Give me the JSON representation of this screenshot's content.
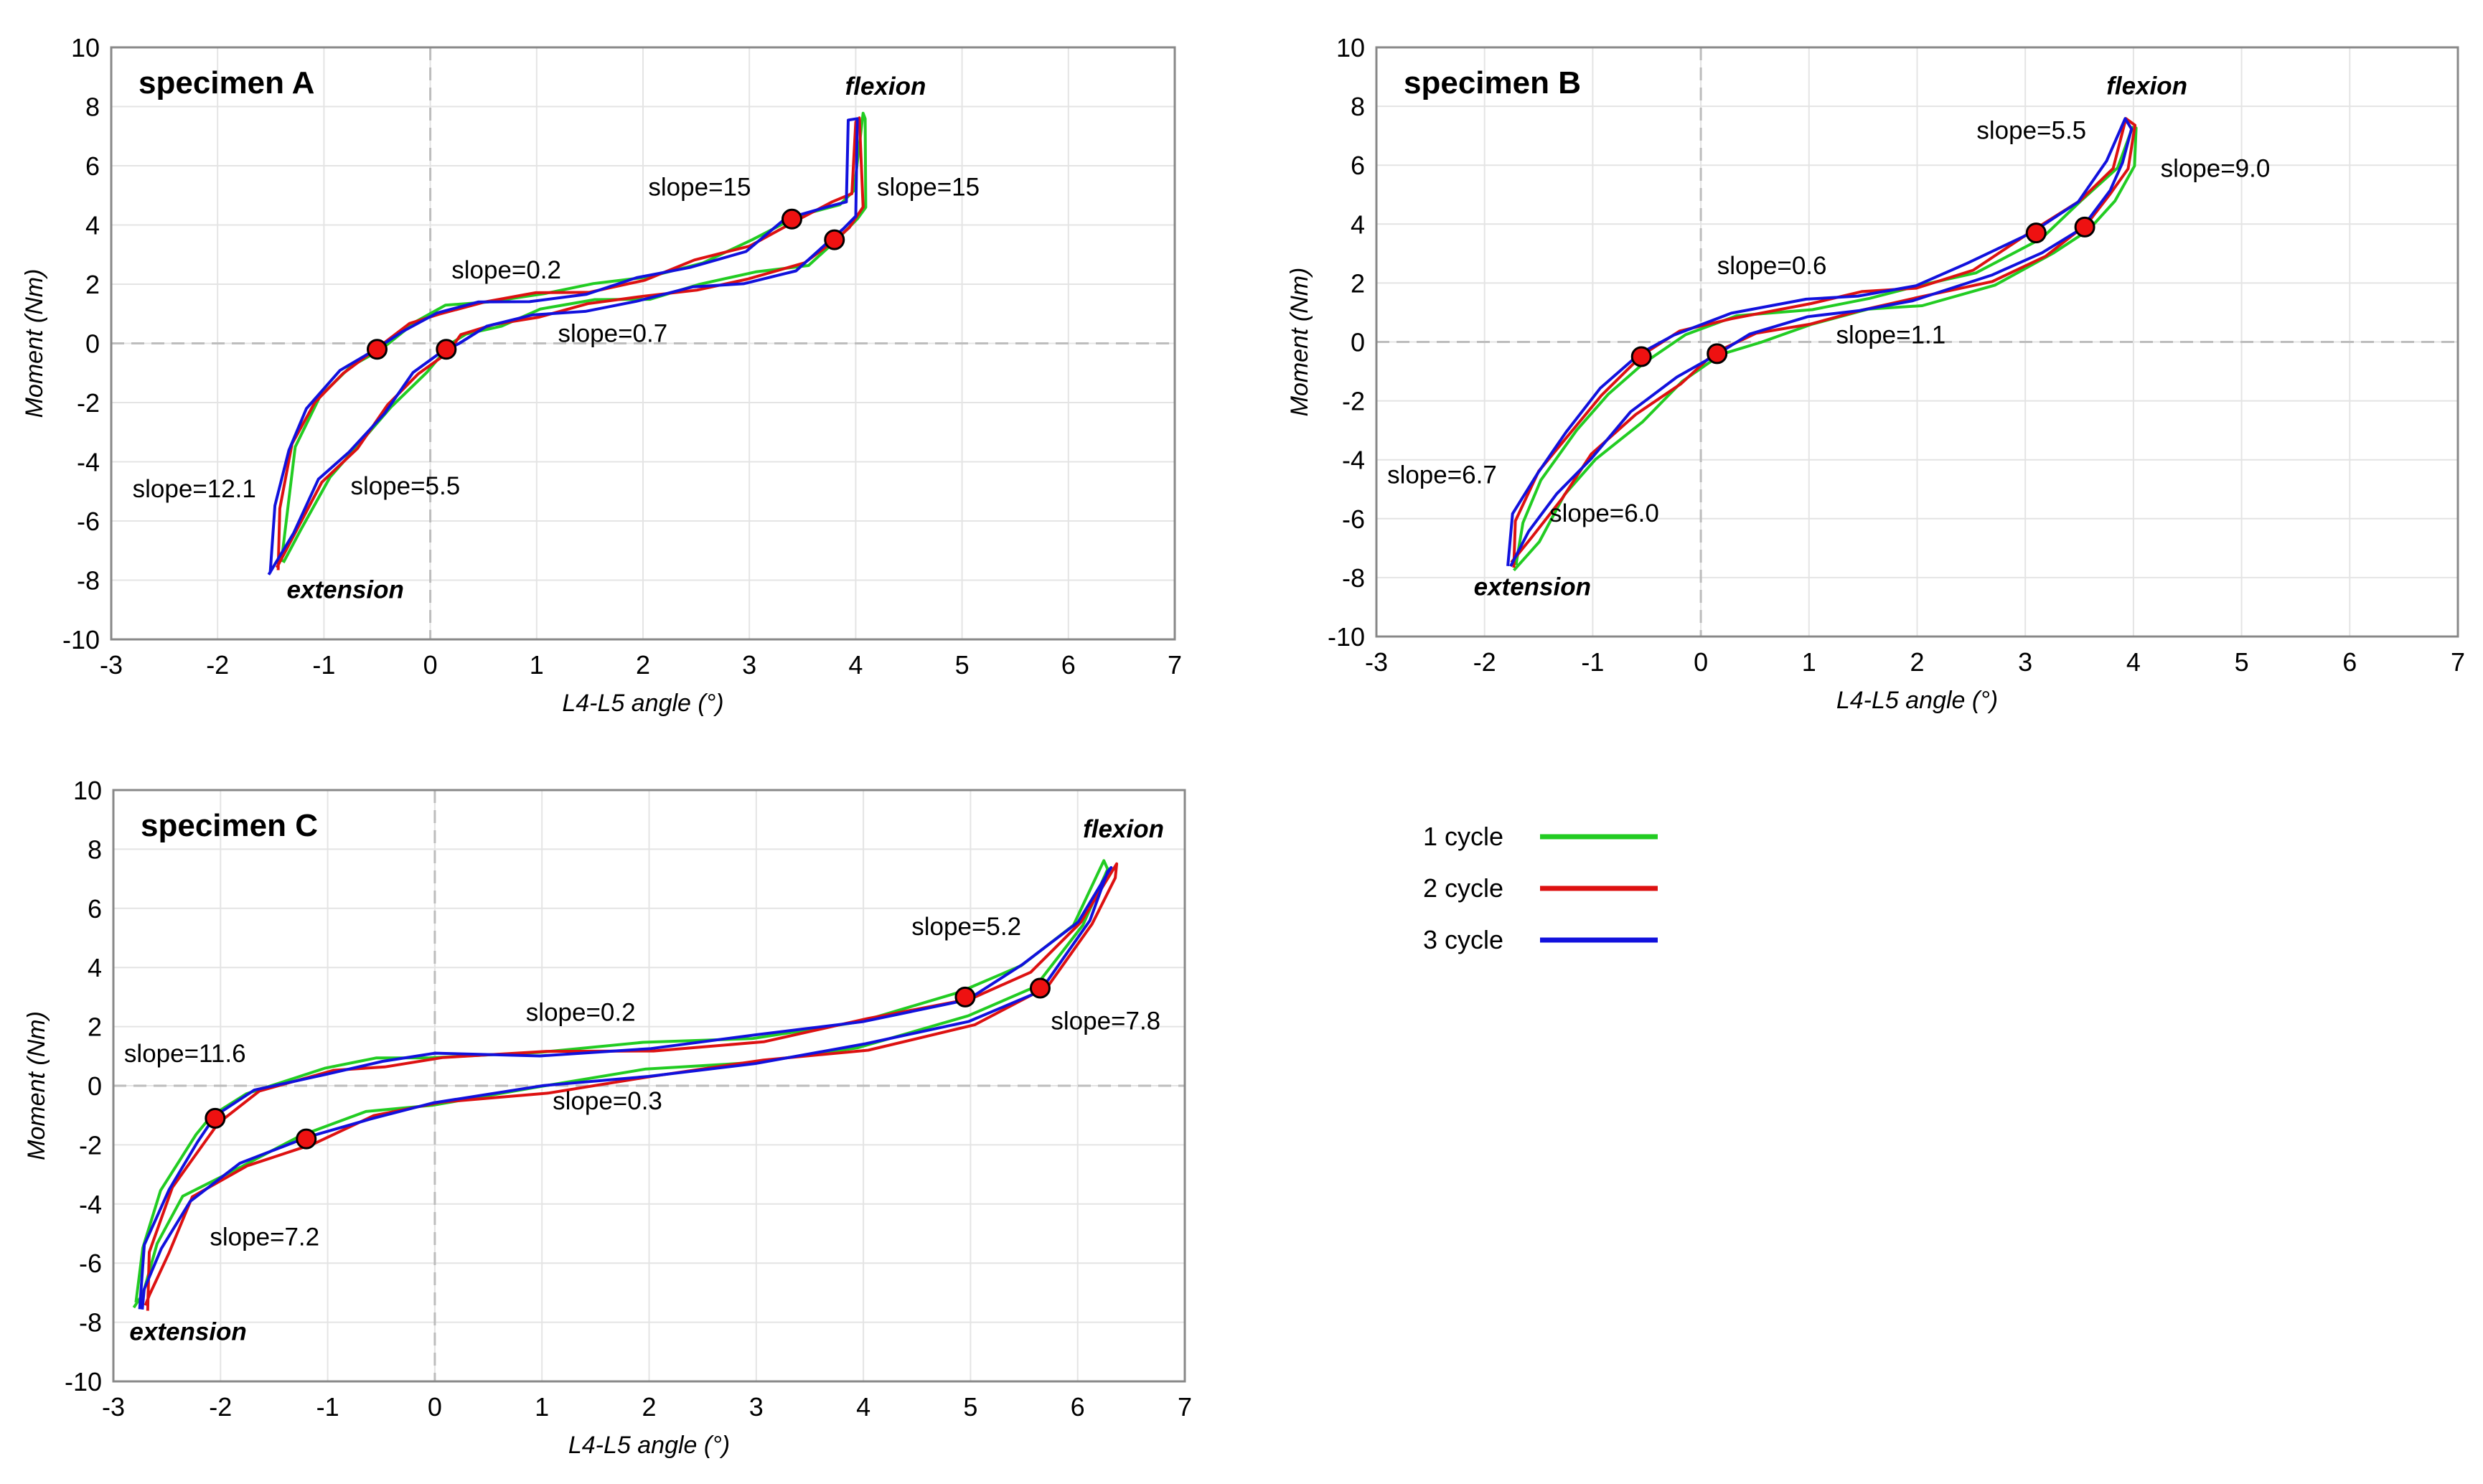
{
  "legend": [
    {
      "label": "1 cycle",
      "color": "#22cc22"
    },
    {
      "label": "2 cycle",
      "color": "#dd1111"
    },
    {
      "label": "3 cycle",
      "color": "#1111dd"
    }
  ],
  "chart_data": [
    {
      "type": "line",
      "title": "specimen A",
      "xlabel": "L4-L5 angle (°)",
      "ylabel": "Moment (Nm)",
      "xlim": [
        -3,
        7
      ],
      "ylim": [
        -10,
        10
      ],
      "xticks": [
        -3,
        -2,
        -1,
        0,
        1,
        2,
        3,
        4,
        5,
        6,
        7
      ],
      "yticks": [
        -10,
        -8,
        -6,
        -4,
        -2,
        0,
        2,
        4,
        6,
        8,
        10
      ],
      "grid": true,
      "series": [
        {
          "name": "1 cycle",
          "color": "#22cc22",
          "x_offset": 0.05,
          "y_offset": 0.1
        },
        {
          "name": "2 cycle",
          "color": "#dd1111",
          "x_offset": 0.0,
          "y_offset": 0.0
        },
        {
          "name": "3 cycle",
          "color": "#1111dd",
          "x_offset": -0.05,
          "y_offset": -0.1
        }
      ],
      "loop_upper": [
        [
          -1.45,
          -7.6
        ],
        [
          -1.4,
          -5.5
        ],
        [
          -1.3,
          -3.5
        ],
        [
          -1.1,
          -2.0
        ],
        [
          -0.8,
          -0.9
        ],
        [
          -0.5,
          -0.2
        ],
        [
          -0.2,
          0.6
        ],
        [
          0.1,
          1.1
        ],
        [
          0.5,
          1.4
        ],
        [
          1.0,
          1.6
        ],
        [
          1.5,
          1.8
        ],
        [
          2.0,
          2.2
        ],
        [
          2.5,
          2.7
        ],
        [
          3.0,
          3.3
        ],
        [
          3.4,
          4.2
        ],
        [
          3.8,
          4.7
        ],
        [
          3.95,
          5.0
        ],
        [
          4.0,
          7.6
        ]
      ],
      "loop_lower": [
        [
          4.05,
          7.6
        ],
        [
          4.05,
          4.5
        ],
        [
          3.95,
          4.0
        ],
        [
          3.8,
          3.5
        ],
        [
          3.5,
          2.6
        ],
        [
          3.0,
          2.2
        ],
        [
          2.5,
          1.9
        ],
        [
          2.0,
          1.5
        ],
        [
          1.5,
          1.3
        ],
        [
          1.0,
          1.0
        ],
        [
          0.6,
          0.6
        ],
        [
          0.3,
          0.2
        ],
        [
          0.15,
          -0.2
        ],
        [
          -0.1,
          -1.0
        ],
        [
          -0.4,
          -2.2
        ],
        [
          -0.7,
          -3.5
        ],
        [
          -1.0,
          -4.6
        ],
        [
          -1.25,
          -6.3
        ],
        [
          -1.45,
          -7.6
        ]
      ],
      "markers": [
        [
          -0.5,
          -0.2
        ],
        [
          0.15,
          -0.2
        ],
        [
          3.4,
          4.2
        ],
        [
          3.8,
          3.5
        ]
      ],
      "annotations": [
        {
          "text": "flexion",
          "x": 3.9,
          "y": 8.4,
          "style": "bi"
        },
        {
          "text": "extension",
          "x": -1.35,
          "y": -8.6,
          "style": "bi"
        },
        {
          "text": "slope=15",
          "x": 2.05,
          "y": 5.0,
          "style": "n"
        },
        {
          "text": "slope=15",
          "x": 4.2,
          "y": 5.0,
          "style": "n"
        },
        {
          "text": "slope=0.2",
          "x": 0.2,
          "y": 2.2,
          "style": "n"
        },
        {
          "text": "slope=0.7",
          "x": 1.2,
          "y": 0.05,
          "style": "n"
        },
        {
          "text": "slope=12.1",
          "x": -2.8,
          "y": -5.2,
          "style": "n"
        },
        {
          "text": "slope=5.5",
          "x": -0.75,
          "y": -5.1,
          "style": "n"
        }
      ]
    },
    {
      "type": "line",
      "title": "specimen B",
      "xlabel": "L4-L5 angle (°)",
      "ylabel": "Moment (Nm)",
      "xlim": [
        -3,
        7
      ],
      "ylim": [
        -10,
        10
      ],
      "xticks": [
        -3,
        -2,
        -1,
        0,
        1,
        2,
        3,
        4,
        5,
        6,
        7
      ],
      "yticks": [
        -10,
        -8,
        -6,
        -4,
        -2,
        0,
        2,
        4,
        6,
        8,
        10
      ],
      "grid": true,
      "series": [
        {
          "name": "1 cycle",
          "color": "#22cc22",
          "x_offset": 0.04,
          "y_offset": -0.1
        },
        {
          "name": "2 cycle",
          "color": "#dd1111",
          "x_offset": 0.0,
          "y_offset": 0.0
        },
        {
          "name": "3 cycle",
          "color": "#1111dd",
          "x_offset": -0.03,
          "y_offset": 0.05
        }
      ],
      "loop_upper": [
        [
          -1.75,
          -7.6
        ],
        [
          -1.7,
          -6.0
        ],
        [
          -1.5,
          -4.5
        ],
        [
          -1.2,
          -3.0
        ],
        [
          -0.9,
          -1.7
        ],
        [
          -0.55,
          -0.5
        ],
        [
          -0.2,
          0.3
        ],
        [
          0.3,
          0.9
        ],
        [
          1.0,
          1.3
        ],
        [
          1.5,
          1.6
        ],
        [
          2.0,
          1.9
        ],
        [
          2.5,
          2.5
        ],
        [
          3.1,
          3.7
        ],
        [
          3.5,
          4.8
        ],
        [
          3.8,
          6.0
        ],
        [
          3.95,
          7.5
        ]
      ],
      "loop_lower": [
        [
          4.0,
          7.3
        ],
        [
          3.95,
          6.0
        ],
        [
          3.8,
          5.0
        ],
        [
          3.55,
          3.9
        ],
        [
          3.2,
          3.0
        ],
        [
          2.7,
          2.1
        ],
        [
          2.0,
          1.4
        ],
        [
          1.5,
          1.1
        ],
        [
          1.0,
          0.7
        ],
        [
          0.5,
          0.2
        ],
        [
          0.15,
          -0.4
        ],
        [
          -0.2,
          -1.3
        ],
        [
          -0.6,
          -2.5
        ],
        [
          -1.0,
          -3.9
        ],
        [
          -1.3,
          -5.2
        ],
        [
          -1.55,
          -6.6
        ],
        [
          -1.75,
          -7.6
        ]
      ],
      "markers": [
        [
          -0.55,
          -0.5
        ],
        [
          0.15,
          -0.4
        ],
        [
          3.1,
          3.7
        ],
        [
          3.55,
          3.9
        ]
      ],
      "annotations": [
        {
          "text": "flexion",
          "x": 3.75,
          "y": 8.4,
          "style": "bi"
        },
        {
          "text": "extension",
          "x": -2.1,
          "y": -8.6,
          "style": "bi"
        },
        {
          "text": "slope=5.5",
          "x": 2.55,
          "y": 6.9,
          "style": "n"
        },
        {
          "text": "slope=9.0",
          "x": 4.25,
          "y": 5.6,
          "style": "n"
        },
        {
          "text": "slope=0.6",
          "x": 0.15,
          "y": 2.3,
          "style": "n"
        },
        {
          "text": "slope=1.1",
          "x": 1.25,
          "y": -0.05,
          "style": "n"
        },
        {
          "text": "slope=6.7",
          "x": -2.9,
          "y": -4.8,
          "style": "n"
        },
        {
          "text": "slope=6.0",
          "x": -1.4,
          "y": -6.1,
          "style": "n"
        }
      ]
    },
    {
      "type": "line",
      "title": "specimen C",
      "xlabel": "L4-L5 angle (°)",
      "ylabel": "Moment (Nm)",
      "xlim": [
        -3,
        7
      ],
      "ylim": [
        -10,
        10
      ],
      "xticks": [
        -3,
        -2,
        -1,
        0,
        1,
        2,
        3,
        4,
        5,
        6,
        7
      ],
      "yticks": [
        -10,
        -8,
        -6,
        -4,
        -2,
        0,
        2,
        4,
        6,
        8,
        10
      ],
      "grid": true,
      "series": [
        {
          "name": "1 cycle",
          "color": "#22cc22",
          "x_offset": -0.04,
          "y_offset": 0.05
        },
        {
          "name": "2 cycle",
          "color": "#dd1111",
          "x_offset": 0.05,
          "y_offset": -0.05
        },
        {
          "name": "3 cycle",
          "color": "#1111dd",
          "x_offset": 0.0,
          "y_offset": 0.0
        }
      ],
      "loop_upper": [
        [
          -2.75,
          -7.5
        ],
        [
          -2.7,
          -5.5
        ],
        [
          -2.5,
          -3.5
        ],
        [
          -2.2,
          -1.8
        ],
        [
          -2.05,
          -1.1
        ],
        [
          -1.7,
          -0.2
        ],
        [
          -1.0,
          0.5
        ],
        [
          -0.5,
          0.8
        ],
        [
          0.0,
          1.0
        ],
        [
          1.0,
          1.1
        ],
        [
          2.0,
          1.3
        ],
        [
          3.0,
          1.6
        ],
        [
          4.0,
          2.2
        ],
        [
          4.95,
          3.0
        ],
        [
          5.5,
          4.0
        ],
        [
          6.0,
          5.5
        ],
        [
          6.3,
          7.5
        ]
      ],
      "loop_lower": [
        [
          6.3,
          7.2
        ],
        [
          6.1,
          5.5
        ],
        [
          5.65,
          3.3
        ],
        [
          5.0,
          2.2
        ],
        [
          4.0,
          1.3
        ],
        [
          3.0,
          0.8
        ],
        [
          2.0,
          0.4
        ],
        [
          1.0,
          -0.1
        ],
        [
          0.0,
          -0.6
        ],
        [
          -0.6,
          -1.0
        ],
        [
          -1.2,
          -1.8
        ],
        [
          -1.8,
          -2.7
        ],
        [
          -2.3,
          -3.8
        ],
        [
          -2.55,
          -5.5
        ],
        [
          -2.7,
          -7.0
        ],
        [
          -2.75,
          -7.5
        ]
      ],
      "markers": [
        [
          -2.05,
          -1.1
        ],
        [
          -1.2,
          -1.8
        ],
        [
          4.95,
          3.0
        ],
        [
          5.65,
          3.3
        ]
      ],
      "annotations": [
        {
          "text": "flexion",
          "x": 6.05,
          "y": 8.4,
          "style": "bi"
        },
        {
          "text": "extension",
          "x": -2.85,
          "y": -8.6,
          "style": "bi"
        },
        {
          "text": "slope=5.2",
          "x": 4.45,
          "y": 5.1,
          "style": "n"
        },
        {
          "text": "slope=7.8",
          "x": 5.75,
          "y": 1.9,
          "style": "n"
        },
        {
          "text": "slope=0.2",
          "x": 0.85,
          "y": 2.2,
          "style": "n"
        },
        {
          "text": "slope=0.3",
          "x": 1.1,
          "y": -0.8,
          "style": "n"
        },
        {
          "text": "slope=11.6",
          "x": -2.9,
          "y": 0.8,
          "style": "n"
        },
        {
          "text": "slope=7.2",
          "x": -2.1,
          "y": -5.4,
          "style": "n"
        }
      ]
    }
  ]
}
